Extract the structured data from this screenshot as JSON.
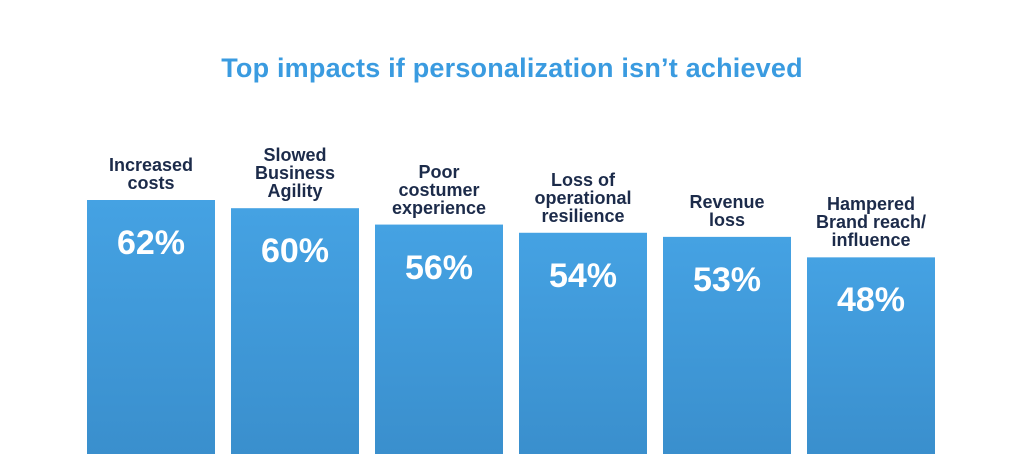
{
  "chart_data": {
    "type": "bar",
    "title": "Top impacts if personalization isn’t achieved",
    "categories": [
      "Increased\ncosts",
      "Slowed\nBusiness\nAgility",
      "Poor\ncostumer\nexperience",
      "Loss of\noperational\nresilience",
      "Revenue\nloss",
      "Hampered\nBrand reach/\ninfluence"
    ],
    "values": [
      62,
      60,
      56,
      54,
      53,
      48
    ],
    "value_labels": [
      "62%",
      "60%",
      "56%",
      "54%",
      "53%",
      "48%"
    ],
    "xlabel": "",
    "ylabel": "",
    "ylim": [
      0,
      100
    ],
    "grid": false,
    "legend": "none"
  },
  "colors": {
    "title": "#3a9be0",
    "bar_top": "#45a2e3",
    "bar_bottom": "#3a8fcd",
    "category_text": "#1c2b4a",
    "value_text": "#ffffff"
  }
}
